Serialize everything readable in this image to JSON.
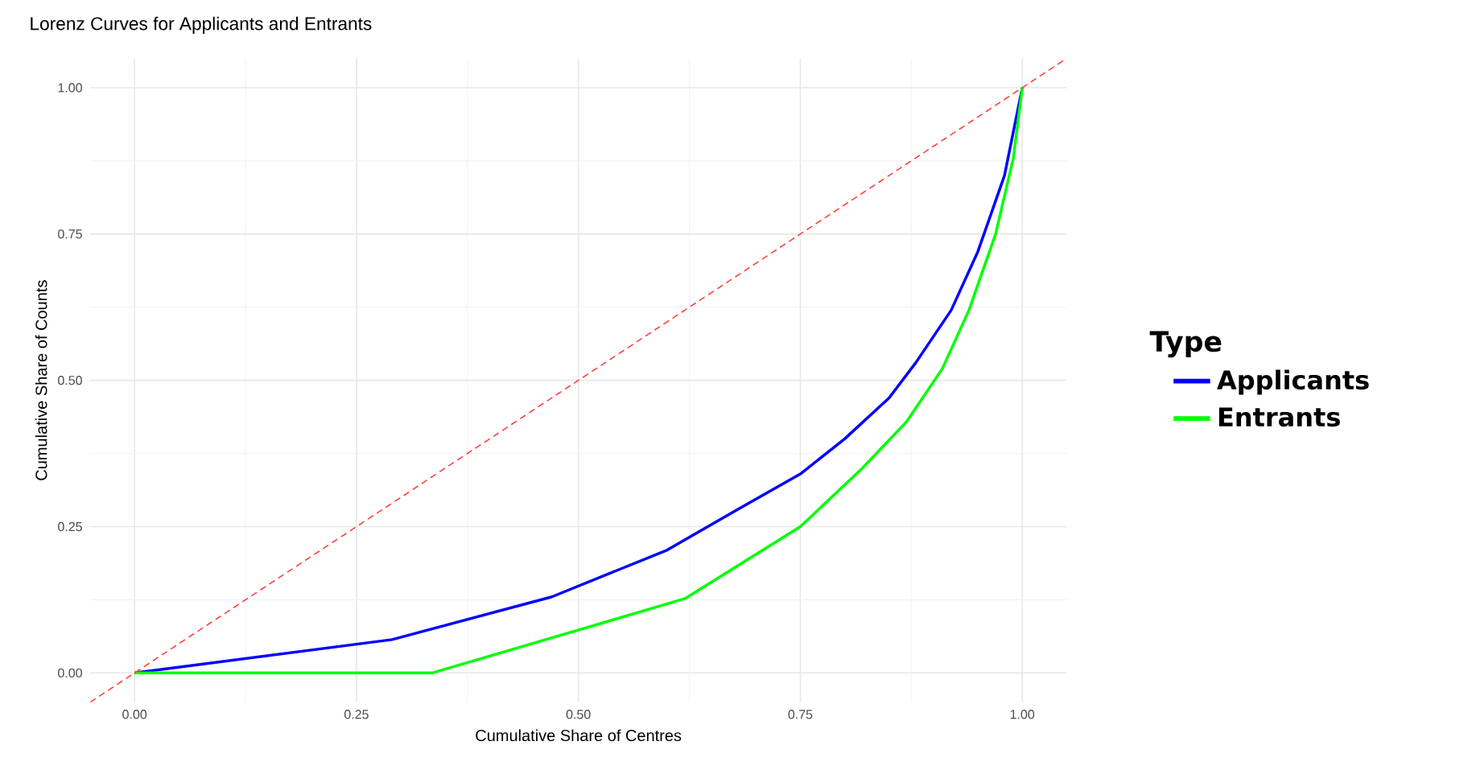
{
  "chart_data": {
    "type": "line",
    "title": "Lorenz Curves for Applicants and Entrants",
    "xlabel": "Cumulative Share of Centres",
    "ylabel": "Cumulative Share of Counts",
    "legend_title": "Type",
    "series": [
      {
        "name": "Applicants",
        "color": "#0000ff",
        "x": [
          0,
          0.29,
          0.47,
          0.6,
          0.68,
          0.75,
          0.8,
          0.85,
          0.88,
          0.92,
          0.95,
          0.98,
          1
        ],
        "values": [
          0,
          0.057,
          0.13,
          0.21,
          0.28,
          0.34,
          0.4,
          0.47,
          0.53,
          0.62,
          0.72,
          0.85,
          1
        ]
      },
      {
        "name": "Entrants",
        "color": "#00ff00",
        "x": [
          0,
          0.335,
          0.47,
          0.62,
          0.75,
          0.82,
          0.87,
          0.91,
          0.94,
          0.97,
          0.99,
          1
        ],
        "values": [
          0,
          0,
          0.06,
          0.127,
          0.25,
          0.35,
          0.43,
          0.52,
          0.62,
          0.75,
          0.88,
          1
        ]
      },
      {
        "color": "#ff4040",
        "line_style": "dashed",
        "x": [
          -0.05,
          1.05
        ],
        "values": [
          -0.05,
          1.05
        ]
      }
    ],
    "xlim": [
      -0.05,
      1.05
    ],
    "ylim": [
      -0.05,
      1.05
    ],
    "xticks": [
      {
        "value": 0,
        "label": "0.00"
      },
      {
        "value": 0.25,
        "label": "0.25"
      },
      {
        "value": 0.5,
        "label": "0.50"
      },
      {
        "value": 0.75,
        "label": "0.75"
      },
      {
        "value": 1,
        "label": "1.00"
      }
    ],
    "yticks": [
      {
        "value": 0,
        "label": "0.00"
      },
      {
        "value": 0.25,
        "label": "0.25"
      },
      {
        "value": 0.5,
        "label": "0.50"
      },
      {
        "value": 0.75,
        "label": "0.75"
      },
      {
        "value": 1,
        "label": "1.00"
      }
    ],
    "grid": true,
    "legend": "right",
    "marker": "none",
    "line_style": "solid"
  }
}
